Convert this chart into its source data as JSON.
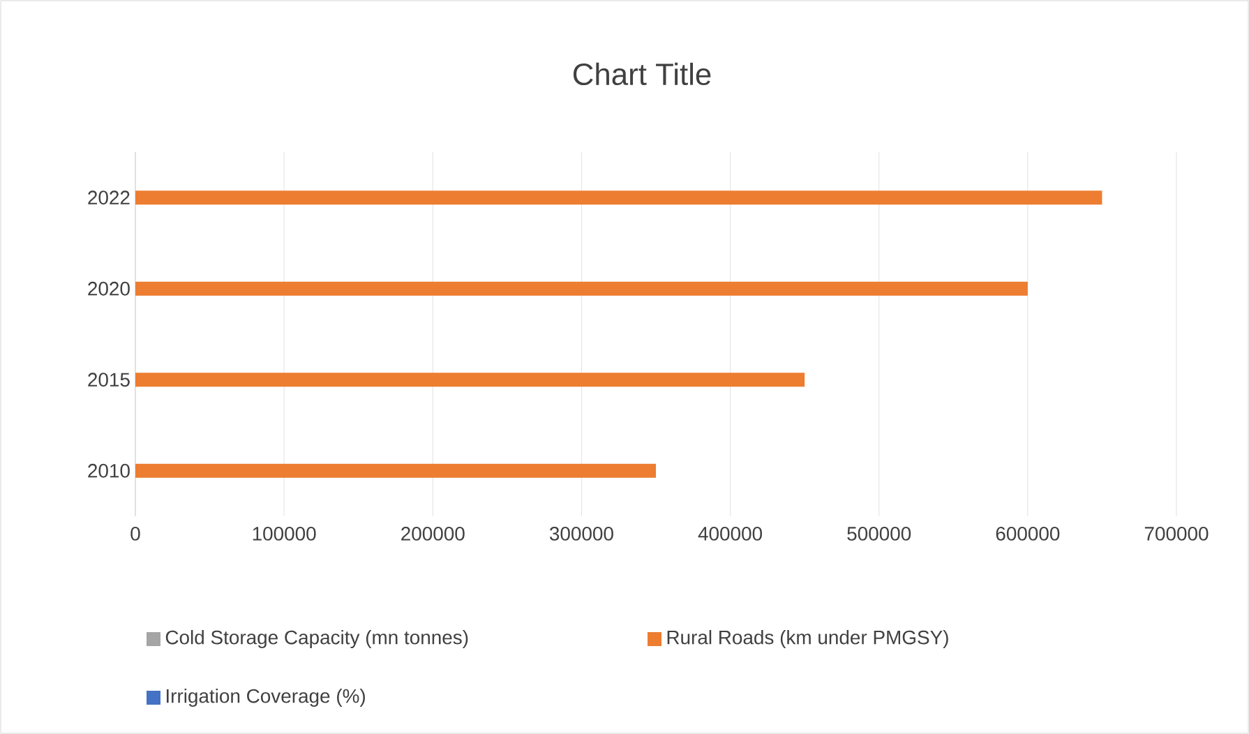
{
  "chart_data": {
    "type": "bar",
    "orientation": "horizontal",
    "title": "Chart Title",
    "categories": [
      "2022",
      "2020",
      "2015",
      "2010"
    ],
    "series": [
      {
        "name": "Cold Storage Capacity (mn tonnes)",
        "color": "#a5a5a5",
        "values": [
          null,
          null,
          null,
          null
        ]
      },
      {
        "name": "Rural Roads (km under PMGSY)",
        "color": "#ed7d31",
        "values": [
          650000,
          600000,
          450000,
          350000
        ]
      },
      {
        "name": "Irrigation Coverage (%)",
        "color": "#4472c4",
        "values": [
          null,
          null,
          null,
          null
        ]
      }
    ],
    "xlim": [
      0,
      700000
    ],
    "xticks": [
      0,
      100000,
      200000,
      300000,
      400000,
      500000,
      600000,
      700000
    ],
    "grid": "x",
    "legend": "bottom"
  }
}
